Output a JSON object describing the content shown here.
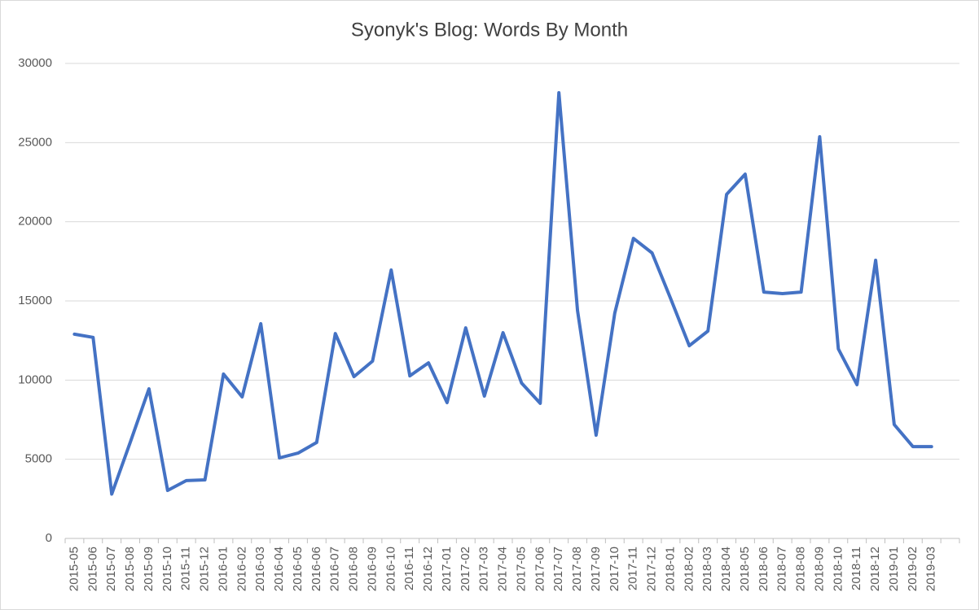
{
  "chart_data": {
    "type": "line",
    "title": "Syonyk's Blog: Words By Month",
    "categories": [
      "2015-05",
      "2015-06",
      "2015-07",
      "2015-08",
      "2015-09",
      "2015-10",
      "2015-11",
      "2015-12",
      "2016-01",
      "2016-02",
      "2016-03",
      "2016-04",
      "2016-05",
      "2016-06",
      "2016-07",
      "2016-08",
      "2016-09",
      "2016-10",
      "2016-11",
      "2016-12",
      "2017-01",
      "2017-02",
      "2017-03",
      "2017-04",
      "2017-05",
      "2017-06",
      "2017-07",
      "2017-08",
      "2017-09",
      "2017-10",
      "2017-11",
      "2017-12",
      "2018-01",
      "2018-02",
      "2018-03",
      "2018-04",
      "2018-05",
      "2018-06",
      "2018-07",
      "2018-08",
      "2018-09",
      "2018-10",
      "2018-11",
      "2018-12",
      "2019-01",
      "2019-02",
      "2019-03",
      null
    ],
    "values": [
      12900,
      12700,
      2800,
      6100,
      9450,
      3030,
      3650,
      3700,
      10380,
      8940,
      13560,
      5085,
      5390,
      6060,
      12940,
      10220,
      11200,
      16950,
      10270,
      11090,
      8580,
      13300,
      8990,
      12990,
      9810,
      8530,
      28150,
      14380,
      6520,
      14230,
      18950,
      18030,
      15150,
      12170,
      13100,
      21730,
      23010,
      15560,
      15460,
      15560,
      25370,
      11970,
      9710,
      17570,
      7190,
      5800,
      5800,
      null
    ],
    "color": "#4472c4",
    "ylim": [
      0,
      30000
    ],
    "yticks": [
      0,
      5000,
      10000,
      15000,
      20000,
      25000,
      30000
    ],
    "grid": true
  }
}
